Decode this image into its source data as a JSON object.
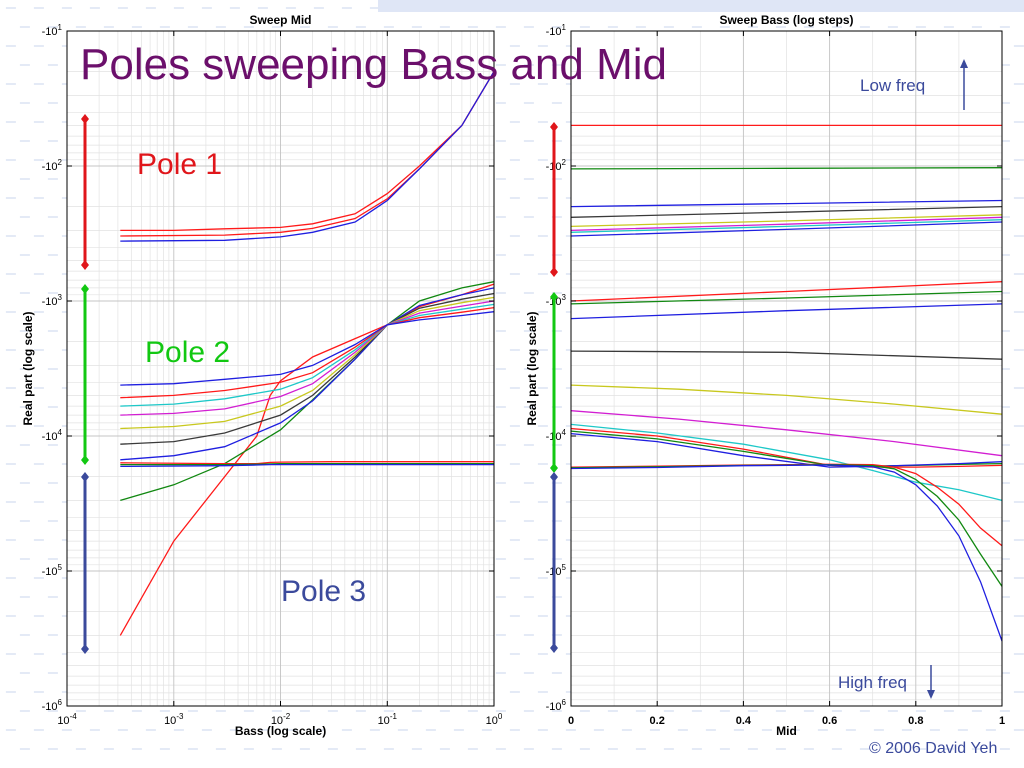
{
  "slide": {
    "title": "Poles sweeping Bass and Mid",
    "pole_labels": [
      {
        "text": "Pole 1",
        "color": "#e0161b"
      },
      {
        "text": "Pole 2",
        "color": "#12c812"
      },
      {
        "text": "Pole 3",
        "color": "#3b4a9c"
      }
    ],
    "low_freq_label": "Low freq",
    "high_freq_label": "High freq",
    "annotation_color": "#3b4a9c",
    "copyright": "© 2006 David Yeh",
    "title_color": "#6b0f6b"
  },
  "palette": {
    "red": "#ff1a1a",
    "green": "#118811",
    "blue": "#1f1fe0",
    "black": "#3a3a3a",
    "olive": "#c8c81e",
    "magenta": "#d21ed2",
    "cyan": "#1ec8c8"
  },
  "chart_data": [
    {
      "type": "line",
      "title": "Sweep Mid",
      "xlabel": "Bass (log scale)",
      "ylabel": "Real part (log scale)",
      "x_scale": "log",
      "y_scale": "log (negative)",
      "xlim": [
        0.0001,
        1
      ],
      "ylim_magnitude": [
        10,
        1000000
      ],
      "x_ticks": [
        {
          "base": "10",
          "exp": "-4",
          "value": 0.0001
        },
        {
          "base": "10",
          "exp": "-3",
          "value": 0.001
        },
        {
          "base": "10",
          "exp": "-2",
          "value": 0.01
        },
        {
          "base": "10",
          "exp": "-1",
          "value": 0.1
        },
        {
          "base": "10",
          "exp": "0",
          "value": 1
        }
      ],
      "y_ticks": [
        {
          "base": "-10",
          "exp": "1",
          "value": -10
        },
        {
          "base": "-10",
          "exp": "2",
          "value": -100
        },
        {
          "base": "-10",
          "exp": "3",
          "value": -1000
        },
        {
          "base": "-10",
          "exp": "4",
          "value": -10000
        },
        {
          "base": "-10",
          "exp": "5",
          "value": -100000
        },
        {
          "base": "-10",
          "exp": "6",
          "value": -1000000
        }
      ],
      "grid": true,
      "series": [
        {
          "color": "red",
          "x": [
            0.000316,
            0.001,
            0.003,
            0.01,
            0.02,
            0.05,
            0.1,
            0.2,
            0.5,
            1
          ],
          "y": [
            -300,
            -300,
            -292,
            -285,
            -268,
            -226,
            -160,
            -100,
            -50,
            -20
          ]
        },
        {
          "color": "red",
          "x": [
            0.000316,
            0.003,
            0.01,
            0.02,
            0.05,
            0.1,
            0.2,
            0.5,
            1
          ],
          "y": [
            -330,
            -325,
            -310,
            -290,
            -245,
            -175,
            -105,
            -50,
            -20
          ]
        },
        {
          "color": "blue",
          "x": [
            0.000316,
            0.003,
            0.01,
            0.02,
            0.05,
            0.1,
            0.2,
            0.5,
            1
          ],
          "y": [
            -360,
            -355,
            -335,
            -310,
            -260,
            -180,
            -105,
            -50,
            -20
          ]
        },
        {
          "color": "red",
          "x": [
            0.000316,
            0.001,
            0.003,
            0.006,
            0.008,
            0.01,
            0.02,
            0.05,
            0.1,
            0.2,
            0.5,
            1
          ],
          "y": [
            -300000,
            -60000,
            -20000,
            -10000,
            -5000,
            -3900,
            -2600,
            -1900,
            -1500,
            -1100,
            -900,
            -750
          ]
        },
        {
          "color": "green",
          "x": [
            0.000316,
            0.001,
            0.003,
            0.01,
            0.02,
            0.05,
            0.1,
            0.2,
            0.5,
            1
          ],
          "y": [
            -30000,
            -23000,
            -16000,
            -9000,
            -5400,
            -2700,
            -1500,
            -1000,
            -800,
            -720
          ]
        },
        {
          "color": "blue",
          "x": [
            0.000316,
            0.001,
            0.003,
            0.01,
            0.02,
            0.05,
            0.1,
            0.2,
            0.5,
            1
          ],
          "y": [
            -15000,
            -14000,
            -12000,
            -8000,
            -5500,
            -2700,
            -1500,
            -1080,
            -900,
            -800
          ]
        },
        {
          "color": "black",
          "x": [
            0.000316,
            0.001,
            0.003,
            0.01,
            0.02,
            0.05,
            0.1,
            0.2,
            0.5,
            1
          ],
          "y": [
            -11500,
            -11000,
            -9500,
            -7000,
            -5000,
            -2600,
            -1500,
            -1130,
            -970,
            -880
          ]
        },
        {
          "color": "olive",
          "x": [
            0.000316,
            0.001,
            0.003,
            0.01,
            0.02,
            0.05,
            0.1,
            0.2,
            0.5,
            1
          ],
          "y": [
            -8800,
            -8500,
            -7800,
            -6000,
            -4600,
            -2500,
            -1500,
            -1180,
            -1030,
            -940
          ]
        },
        {
          "color": "magenta",
          "x": [
            0.000316,
            0.001,
            0.003,
            0.01,
            0.02,
            0.05,
            0.1,
            0.2,
            0.5,
            1
          ],
          "y": [
            -7000,
            -6800,
            -6300,
            -5100,
            -4100,
            -2400,
            -1500,
            -1230,
            -1090,
            -1000
          ]
        },
        {
          "color": "cyan",
          "x": [
            0.000316,
            0.001,
            0.003,
            0.01,
            0.02,
            0.05,
            0.1,
            0.2,
            0.5,
            1
          ],
          "y": [
            -6000,
            -5800,
            -5300,
            -4500,
            -3700,
            -2300,
            -1500,
            -1280,
            -1150,
            -1060
          ]
        },
        {
          "color": "red",
          "x": [
            0.000316,
            0.001,
            0.003,
            0.01,
            0.02,
            0.05,
            0.1,
            0.2,
            0.5,
            1
          ],
          "y": [
            -5200,
            -5000,
            -4600,
            -4000,
            -3400,
            -2200,
            -1500,
            -1330,
            -1210,
            -1120
          ]
        },
        {
          "color": "blue",
          "x": [
            0.000316,
            0.001,
            0.003,
            0.01,
            0.02,
            0.05,
            0.1,
            0.2,
            0.5,
            1
          ],
          "y": [
            -4200,
            -4100,
            -3800,
            -3500,
            -3000,
            -2100,
            -1500,
            -1380,
            -1280,
            -1200
          ]
        },
        {
          "color": "red",
          "x": [
            0.000316,
            0.003,
            0.006,
            0.008,
            0.01,
            0.03,
            0.1,
            1
          ],
          "y": [
            -15800,
            -16000,
            -16000,
            -15700,
            -15600,
            -15500,
            -15500,
            -15500
          ]
        },
        {
          "color": "green",
          "x": [
            0.000316,
            0.003,
            0.006,
            0.008,
            0.01,
            0.03,
            0.1,
            1
          ],
          "y": [
            -16300,
            -16300,
            -16200,
            -16100,
            -16000,
            -16000,
            -16000,
            -16000
          ]
        },
        {
          "color": "blue",
          "x": [
            0.000316,
            0.003,
            0.006,
            0.008,
            0.01,
            0.03,
            0.1,
            1
          ],
          "y": [
            -16800,
            -16600,
            -16400,
            -16300,
            -16300,
            -16300,
            -16300,
            -16300
          ]
        }
      ]
    },
    {
      "type": "line",
      "title": "Sweep Bass (log steps)",
      "xlabel": "Mid",
      "ylabel": "Real part (log scale)",
      "x_scale": "linear",
      "y_scale": "log (negative)",
      "xlim": [
        0,
        1
      ],
      "ylim_magnitude": [
        10,
        1000000
      ],
      "x_ticks": [
        {
          "label": "0",
          "value": 0
        },
        {
          "label": "0.2",
          "value": 0.2
        },
        {
          "label": "0.4",
          "value": 0.4
        },
        {
          "label": "0.6",
          "value": 0.6
        },
        {
          "label": "0.8",
          "value": 0.8
        },
        {
          "label": "1",
          "value": 1
        }
      ],
      "y_ticks": [
        {
          "base": "-10",
          "exp": "1",
          "value": -10
        },
        {
          "base": "-10",
          "exp": "2",
          "value": -100
        },
        {
          "base": "-10",
          "exp": "3",
          "value": -1000
        },
        {
          "base": "-10",
          "exp": "4",
          "value": -10000
        },
        {
          "base": "-10",
          "exp": "5",
          "value": -100000
        },
        {
          "base": "-10",
          "exp": "6",
          "value": -1000000
        }
      ],
      "grid": true,
      "series": [
        {
          "color": "red",
          "x": [
            0,
            0.5,
            1
          ],
          "y": [
            -50,
            -50,
            -50
          ]
        },
        {
          "color": "green",
          "x": [
            0,
            0.5,
            1
          ],
          "y": [
            -105,
            -104,
            -103
          ]
        },
        {
          "color": "blue",
          "x": [
            0,
            0.5,
            1
          ],
          "y": [
            -200,
            -190,
            -180
          ]
        },
        {
          "color": "black",
          "x": [
            0,
            0.5,
            1
          ],
          "y": [
            -240,
            -220,
            -200
          ]
        },
        {
          "color": "olive",
          "x": [
            0,
            0.5,
            1
          ],
          "y": [
            -280,
            -255,
            -230
          ]
        },
        {
          "color": "magenta",
          "x": [
            0,
            0.5,
            1
          ],
          "y": [
            -300,
            -270,
            -240
          ]
        },
        {
          "color": "cyan",
          "x": [
            0,
            0.5,
            1
          ],
          "y": [
            -310,
            -280,
            -250
          ]
        },
        {
          "color": "blue",
          "x": [
            0,
            0.5,
            1
          ],
          "y": [
            -330,
            -295,
            -260
          ]
        },
        {
          "color": "red",
          "x": [
            0,
            0.5,
            1
          ],
          "y": [
            -1000,
            -850,
            -720
          ]
        },
        {
          "color": "green",
          "x": [
            0,
            0.5,
            1
          ],
          "y": [
            -1050,
            -950,
            -850
          ]
        },
        {
          "color": "blue",
          "x": [
            0,
            0.5,
            1
          ],
          "y": [
            -1350,
            -1180,
            -1050
          ]
        },
        {
          "color": "black",
          "x": [
            0,
            0.5,
            1
          ],
          "y": [
            -2350,
            -2400,
            -2700
          ]
        },
        {
          "color": "olive",
          "x": [
            0,
            0.25,
            0.5,
            0.75,
            1
          ],
          "y": [
            -4200,
            -4500,
            -5000,
            -5800,
            -6900
          ]
        },
        {
          "color": "magenta",
          "x": [
            0,
            0.25,
            0.5,
            0.75,
            1
          ],
          "y": [
            -6500,
            -7500,
            -9000,
            -11000,
            -14000
          ]
        },
        {
          "color": "cyan",
          "x": [
            0,
            0.2,
            0.4,
            0.6,
            0.7,
            0.8,
            0.9,
            1
          ],
          "y": [
            -8200,
            -9500,
            -11500,
            -15000,
            -18000,
            -22000,
            -25000,
            -30000
          ]
        },
        {
          "color": "red",
          "x": [
            0,
            0.2,
            0.4,
            0.6,
            0.7,
            0.8,
            0.9,
            1
          ],
          "y": [
            -8800,
            -10000,
            -12500,
            -16500,
            -17000,
            -17000,
            -16800,
            -16500
          ]
        },
        {
          "color": "green",
          "x": [
            0,
            0.2,
            0.4,
            0.6,
            0.7,
            0.8,
            0.9,
            1
          ],
          "y": [
            -9200,
            -10500,
            -13000,
            -16500,
            -16700,
            -16500,
            -16200,
            -16000
          ]
        },
        {
          "color": "blue",
          "x": [
            0,
            0.2,
            0.4,
            0.6,
            0.7,
            0.8,
            0.9,
            1
          ],
          "y": [
            -9600,
            -11000,
            -14000,
            -17000,
            -16800,
            -16400,
            -16000,
            -15500
          ]
        },
        {
          "color": "red",
          "x": [
            0,
            0.2,
            0.4,
            0.6,
            0.7,
            0.75,
            0.8,
            0.85,
            0.9,
            0.95,
            1
          ],
          "y": [
            -17000,
            -16700,
            -16400,
            -16200,
            -16300,
            -17000,
            -19000,
            -24000,
            -32000,
            -48000,
            -65000
          ]
        },
        {
          "color": "green",
          "x": [
            0,
            0.2,
            0.4,
            0.6,
            0.7,
            0.75,
            0.8,
            0.85,
            0.9,
            0.95,
            1
          ],
          "y": [
            -17200,
            -16900,
            -16500,
            -16300,
            -16600,
            -17500,
            -21000,
            -28000,
            -42000,
            -75000,
            -130000
          ]
        },
        {
          "color": "blue",
          "x": [
            0,
            0.2,
            0.4,
            0.6,
            0.7,
            0.75,
            0.8,
            0.85,
            0.9,
            0.95,
            1
          ],
          "y": [
            -17400,
            -17100,
            -16600,
            -16400,
            -16900,
            -18500,
            -23000,
            -33000,
            -55000,
            -120000,
            -330000
          ]
        }
      ]
    }
  ]
}
